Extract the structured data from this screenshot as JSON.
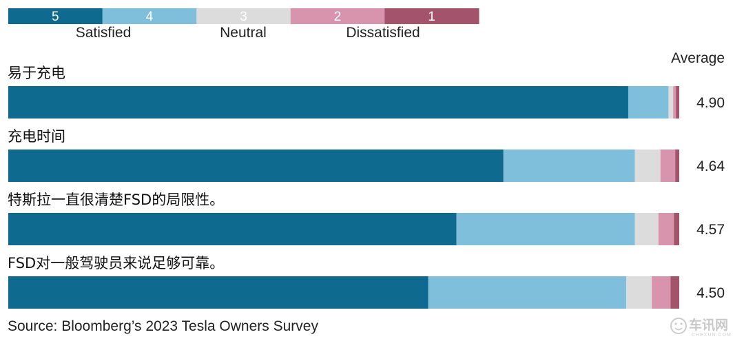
{
  "chart_data": {
    "type": "bar",
    "stacked": true,
    "orientation": "horizontal",
    "legend": [
      {
        "label": "5",
        "color": "#0e6a8f"
      },
      {
        "label": "4",
        "color": "#80bfdc"
      },
      {
        "label": "3",
        "color": "#dcdcdc"
      },
      {
        "label": "2",
        "color": "#d893ad"
      },
      {
        "label": "1",
        "color": "#a3546c"
      }
    ],
    "legend_groups": [
      "Satisfied",
      "Neutral",
      "Dissatisfied"
    ],
    "value_column_title": "Average",
    "categories": [
      "易于充电",
      "充电时间",
      "特斯拉一直很清楚FSD的局限性。",
      "FSD对一般驾驶员来说足够可靠。"
    ],
    "series": [
      {
        "name": "5",
        "values": [
          92.4,
          73.8,
          66.8,
          62.6
        ]
      },
      {
        "name": "4",
        "values": [
          6.0,
          19.6,
          26.6,
          29.5
        ]
      },
      {
        "name": "3",
        "values": [
          0.7,
          3.8,
          3.5,
          3.8
        ]
      },
      {
        "name": "2",
        "values": [
          0.4,
          2.2,
          2.3,
          2.8
        ]
      },
      {
        "name": "1",
        "values": [
          0.5,
          0.6,
          0.8,
          1.3
        ]
      }
    ],
    "averages": [
      "4.90",
      "4.64",
      "4.57",
      "4.50"
    ],
    "xlim": [
      0,
      100
    ],
    "grid": false,
    "legend_position": "top-left"
  },
  "source": "Source: Bloomberg’s 2023 Tesla Owners Survey",
  "watermark": {
    "text": "车讯网",
    "subtext": "CHEXUN.COM",
    "icon": "smiley-icon"
  }
}
